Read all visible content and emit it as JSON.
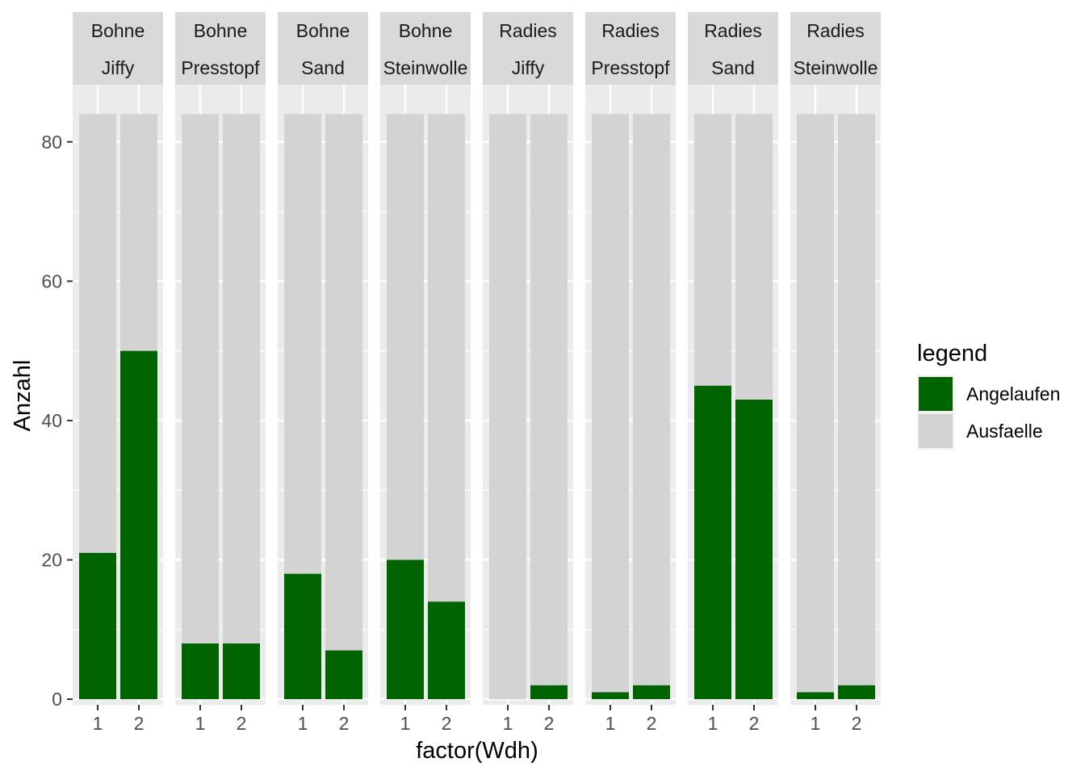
{
  "chart_data": {
    "type": "bar",
    "stacked": true,
    "facets": [
      {
        "label_top": "Bohne",
        "label_bottom": "Jiffy",
        "x": [
          "1",
          "2"
        ],
        "angelaufen": [
          21,
          50
        ],
        "total": [
          84,
          84
        ]
      },
      {
        "label_top": "Bohne",
        "label_bottom": "Presstopf",
        "x": [
          "1",
          "2"
        ],
        "angelaufen": [
          8,
          8
        ],
        "total": [
          84,
          84
        ]
      },
      {
        "label_top": "Bohne",
        "label_bottom": "Sand",
        "x": [
          "1",
          "2"
        ],
        "angelaufen": [
          18,
          7
        ],
        "total": [
          84,
          84
        ]
      },
      {
        "label_top": "Bohne",
        "label_bottom": "Steinwolle",
        "x": [
          "1",
          "2"
        ],
        "angelaufen": [
          20,
          14
        ],
        "total": [
          84,
          84
        ]
      },
      {
        "label_top": "Radies",
        "label_bottom": "Jiffy",
        "x": [
          "1",
          "2"
        ],
        "angelaufen": [
          0,
          2
        ],
        "total": [
          84,
          84
        ]
      },
      {
        "label_top": "Radies",
        "label_bottom": "Presstopf",
        "x": [
          "1",
          "2"
        ],
        "angelaufen": [
          1,
          2
        ],
        "total": [
          84,
          84
        ]
      },
      {
        "label_top": "Radies",
        "label_bottom": "Sand",
        "x": [
          "1",
          "2"
        ],
        "angelaufen": [
          45,
          43
        ],
        "total": [
          84,
          84
        ]
      },
      {
        "label_top": "Radies",
        "label_bottom": "Steinwolle",
        "x": [
          "1",
          "2"
        ],
        "angelaufen": [
          1,
          2
        ],
        "total": [
          84,
          84
        ]
      }
    ],
    "series": [
      {
        "name": "Angelaufen",
        "color": "#006400"
      },
      {
        "name": "Ausfaelle",
        "color": "#d3d3d3"
      }
    ],
    "xlabel": "factor(Wdh)",
    "ylabel": "Anzahl",
    "yticks": [
      0,
      20,
      40,
      60,
      80
    ],
    "ylim": [
      -0.8,
      88.2
    ],
    "legend": {
      "title": "legend",
      "position": "right"
    },
    "grid": true
  }
}
